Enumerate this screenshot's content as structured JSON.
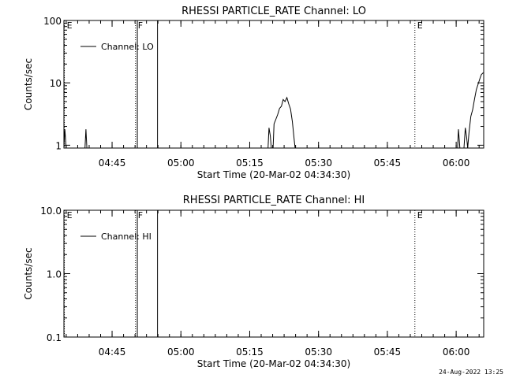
{
  "timestamp": "24-Aug-2022 13:25",
  "chart_data": [
    {
      "type": "line",
      "title": "RHESSI PARTICLE_RATE Channel: LO",
      "xlabel": "Start Time (20-Mar-02 04:34:30)",
      "ylabel": "Counts/sec",
      "yscale": "log",
      "ylim": [
        0.9,
        100
      ],
      "yticks": [
        1,
        10,
        100
      ],
      "ytick_labels": [
        "1",
        "10",
        "100"
      ],
      "xlim_minutes": [
        0,
        91.5
      ],
      "xticks_minutes": [
        10.5,
        25.5,
        40.5,
        55.5,
        70.5,
        85.5
      ],
      "xtick_labels": [
        "04:45",
        "05:00",
        "05:15",
        "05:30",
        "05:45",
        "06:00"
      ],
      "legend": {
        "label": "Channel: LO",
        "position": "top-left"
      },
      "markers": [
        {
          "minute": 0.1,
          "label": "E",
          "style": "dotted"
        },
        {
          "minute": 15.6,
          "label": "F",
          "style": "dotted"
        },
        {
          "minute": 16.0,
          "label": "",
          "style": "solid"
        },
        {
          "minute": 20.4,
          "label": "",
          "style": "solid"
        },
        {
          "minute": 76.5,
          "label": "E",
          "style": "dotted"
        },
        {
          "minute": 91.5,
          "label": "",
          "style": "dotted"
        }
      ],
      "series": [
        {
          "name": "Channel: LO",
          "points": [
            [
              0.0,
              0.9
            ],
            [
              0.2,
              1.8
            ],
            [
              0.5,
              0.9
            ],
            [
              4.6,
              0.9
            ],
            [
              4.8,
              1.8
            ],
            [
              5.0,
              0.9
            ],
            [
              44.5,
              0.9
            ],
            [
              44.7,
              1.9
            ],
            [
              45.0,
              1.4
            ],
            [
              45.2,
              0.9
            ],
            [
              45.6,
              0.9
            ],
            [
              45.8,
              2.2
            ],
            [
              46.2,
              2.6
            ],
            [
              46.6,
              3.1
            ],
            [
              47.0,
              3.9
            ],
            [
              47.4,
              4.2
            ],
            [
              47.8,
              5.4
            ],
            [
              48.2,
              5.0
            ],
            [
              48.6,
              5.8
            ],
            [
              49.0,
              4.6
            ],
            [
              49.4,
              3.8
            ],
            [
              49.8,
              2.4
            ],
            [
              50.2,
              1.2
            ],
            [
              50.4,
              0.9
            ],
            [
              85.8,
              0.9
            ],
            [
              86.0,
              1.8
            ],
            [
              86.3,
              0.9
            ],
            [
              87.2,
              0.9
            ],
            [
              87.5,
              1.9
            ],
            [
              87.8,
              1.3
            ],
            [
              88.0,
              0.9
            ],
            [
              88.3,
              1.6
            ],
            [
              88.7,
              2.9
            ],
            [
              89.1,
              3.7
            ],
            [
              89.5,
              5.5
            ],
            [
              89.9,
              7.8
            ],
            [
              90.3,
              9.6
            ],
            [
              90.7,
              11.8
            ],
            [
              91.0,
              13.6
            ],
            [
              91.4,
              14.5
            ]
          ]
        }
      ]
    },
    {
      "type": "line",
      "title": "RHESSI PARTICLE_RATE Channel: HI",
      "xlabel": "Start Time (20-Mar-02 04:34:30)",
      "ylabel": "Counts/sec",
      "yscale": "log",
      "ylim": [
        0.1,
        10
      ],
      "yticks": [
        0.1,
        1,
        10
      ],
      "ytick_labels": [
        "0.1",
        "1.0",
        "10.0"
      ],
      "xlim_minutes": [
        0,
        91.5
      ],
      "xticks_minutes": [
        10.5,
        25.5,
        40.5,
        55.5,
        70.5,
        85.5
      ],
      "xtick_labels": [
        "04:45",
        "05:00",
        "05:15",
        "05:30",
        "05:45",
        "06:00"
      ],
      "legend": {
        "label": "Channel: HI",
        "position": "top-left"
      },
      "markers": [
        {
          "minute": 0.1,
          "label": "E",
          "style": "dotted"
        },
        {
          "minute": 15.6,
          "label": "F",
          "style": "dotted"
        },
        {
          "minute": 16.0,
          "label": "",
          "style": "solid"
        },
        {
          "minute": 20.4,
          "label": "",
          "style": "solid"
        },
        {
          "minute": 76.5,
          "label": "E",
          "style": "dotted"
        },
        {
          "minute": 91.5,
          "label": "",
          "style": "dotted"
        }
      ],
      "series": [
        {
          "name": "Channel: HI",
          "points": []
        }
      ]
    }
  ]
}
